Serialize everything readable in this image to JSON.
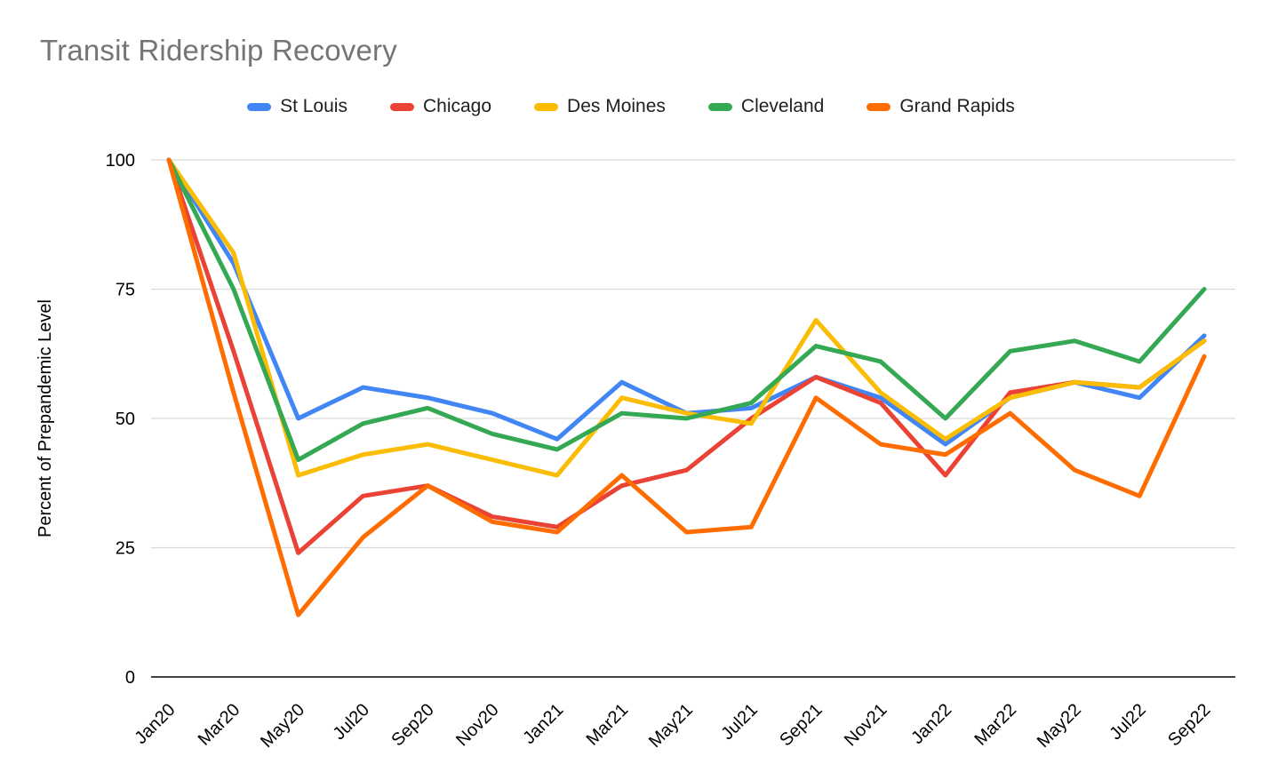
{
  "chart_data": {
    "type": "line",
    "title": "Transit Ridership Recovery",
    "xlabel": "",
    "ylabel": "Percent of Prepandemic Level",
    "ylim": [
      0,
      100
    ],
    "yticks": [
      0,
      25,
      50,
      75,
      100
    ],
    "grid": true,
    "legend_position": "top",
    "categories": [
      "Jan20",
      "Mar20",
      "May20",
      "Jul20",
      "Sep20",
      "Nov20",
      "Jan21",
      "Mar21",
      "May21",
      "Jul21",
      "Sep21",
      "Nov21",
      "Jan22",
      "Mar22",
      "May22",
      "Jul22",
      "Sep22"
    ],
    "series": [
      {
        "name": "St Louis",
        "color": "#4285F4",
        "values": [
          100,
          80,
          50,
          56,
          54,
          51,
          46,
          57,
          51,
          52,
          58,
          54,
          45,
          54,
          57,
          54,
          66
        ]
      },
      {
        "name": "Chicago",
        "color": "#EA4335",
        "values": [
          100,
          63,
          24,
          35,
          37,
          31,
          29,
          37,
          40,
          50,
          58,
          53,
          39,
          55,
          57,
          56,
          65
        ]
      },
      {
        "name": "Des Moines",
        "color": "#FBBC04",
        "values": [
          100,
          82,
          39,
          43,
          45,
          42,
          39,
          54,
          51,
          49,
          69,
          55,
          46,
          54,
          57,
          56,
          65
        ]
      },
      {
        "name": "Cleveland",
        "color": "#34A853",
        "values": [
          100,
          75,
          42,
          49,
          52,
          47,
          44,
          51,
          50,
          53,
          64,
          61,
          50,
          63,
          65,
          61,
          75
        ]
      },
      {
        "name": "Grand Rapids",
        "color": "#FF6D01",
        "values": [
          100,
          55,
          12,
          27,
          37,
          30,
          28,
          39,
          28,
          29,
          54,
          45,
          43,
          51,
          40,
          35,
          62
        ]
      }
    ]
  }
}
